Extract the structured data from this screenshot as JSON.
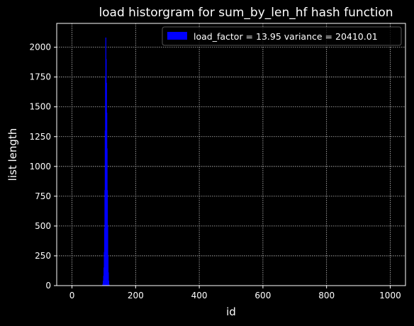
{
  "chart_data": {
    "type": "bar",
    "title": "load historgram for sum_by_len_hf hash function",
    "xlabel": "id",
    "ylabel": "list length",
    "xlim": [
      -48,
      1048
    ],
    "ylim": [
      0,
      2200
    ],
    "xticks": [
      0,
      200,
      400,
      600,
      800,
      1000
    ],
    "yticks": [
      0,
      250,
      500,
      750,
      1000,
      1250,
      1500,
      1750,
      2000
    ],
    "grid": true,
    "legend_position": "upper right",
    "series": [
      {
        "name": "load_factor = 13.95 variance = 20410.01",
        "color": "#0000ff",
        "x": [
          96,
          97,
          98,
          99,
          100,
          101,
          102,
          103,
          104,
          105,
          106,
          107,
          108,
          109,
          110,
          111,
          112,
          113,
          114,
          115,
          116
        ],
        "values": [
          5,
          15,
          40,
          80,
          150,
          280,
          480,
          800,
          1300,
          1750,
          2080,
          1900,
          1700,
          1450,
          1150,
          800,
          500,
          250,
          110,
          40,
          10
        ]
      }
    ]
  },
  "colors": {
    "background": "#000000",
    "foreground": "#ffffff",
    "grid": "#bfbfbf",
    "bar": "#0000ff"
  }
}
